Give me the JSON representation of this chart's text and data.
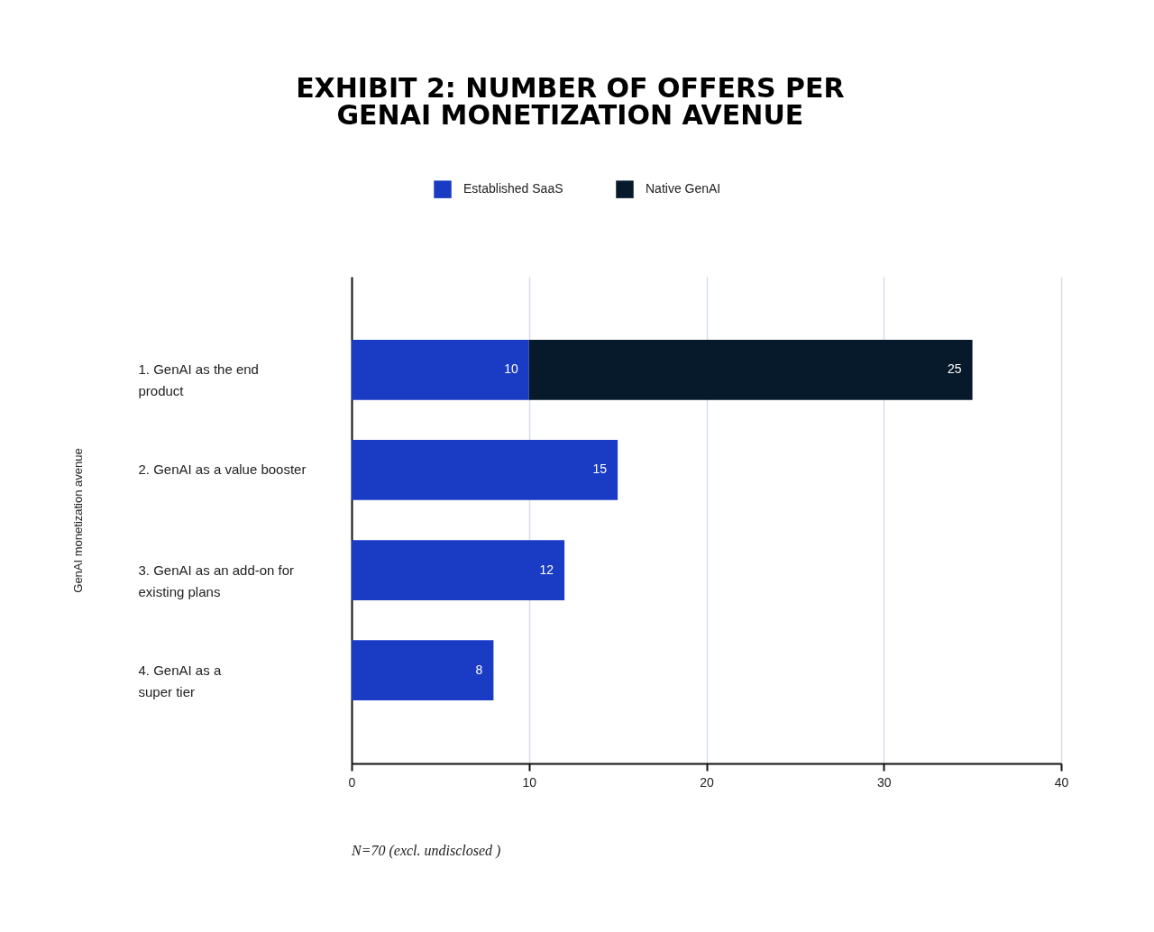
{
  "chart_data": {
    "type": "bar",
    "orientation": "horizontal",
    "stacked": true,
    "title": "EXHIBIT 2: NUMBER OF OFFERS PER GENAI MONETIZATION AVENUE",
    "ylabel": "GenAI monetization avenue",
    "categories": [
      "1. GenAI as the end\nproduct",
      "2. GenAI as a value booster",
      "3. GenAI as an add-on for\nexisting plans",
      "4. GenAI as a\nsuper tier"
    ],
    "series": [
      {
        "name": "Established SaaS",
        "color": "#1a3bc4",
        "values": [
          10,
          15,
          12,
          8
        ]
      },
      {
        "name": "Native GenAI",
        "color": "#071a2c",
        "values": [
          25,
          null,
          null,
          null
        ]
      }
    ],
    "xlim": [
      0,
      40
    ],
    "xticks": [
      0,
      10,
      20,
      30,
      40
    ],
    "grid": "x",
    "legend": "top",
    "data_labels": true,
    "annotations": [
      "N=70 (excl. undisclosed )"
    ]
  }
}
